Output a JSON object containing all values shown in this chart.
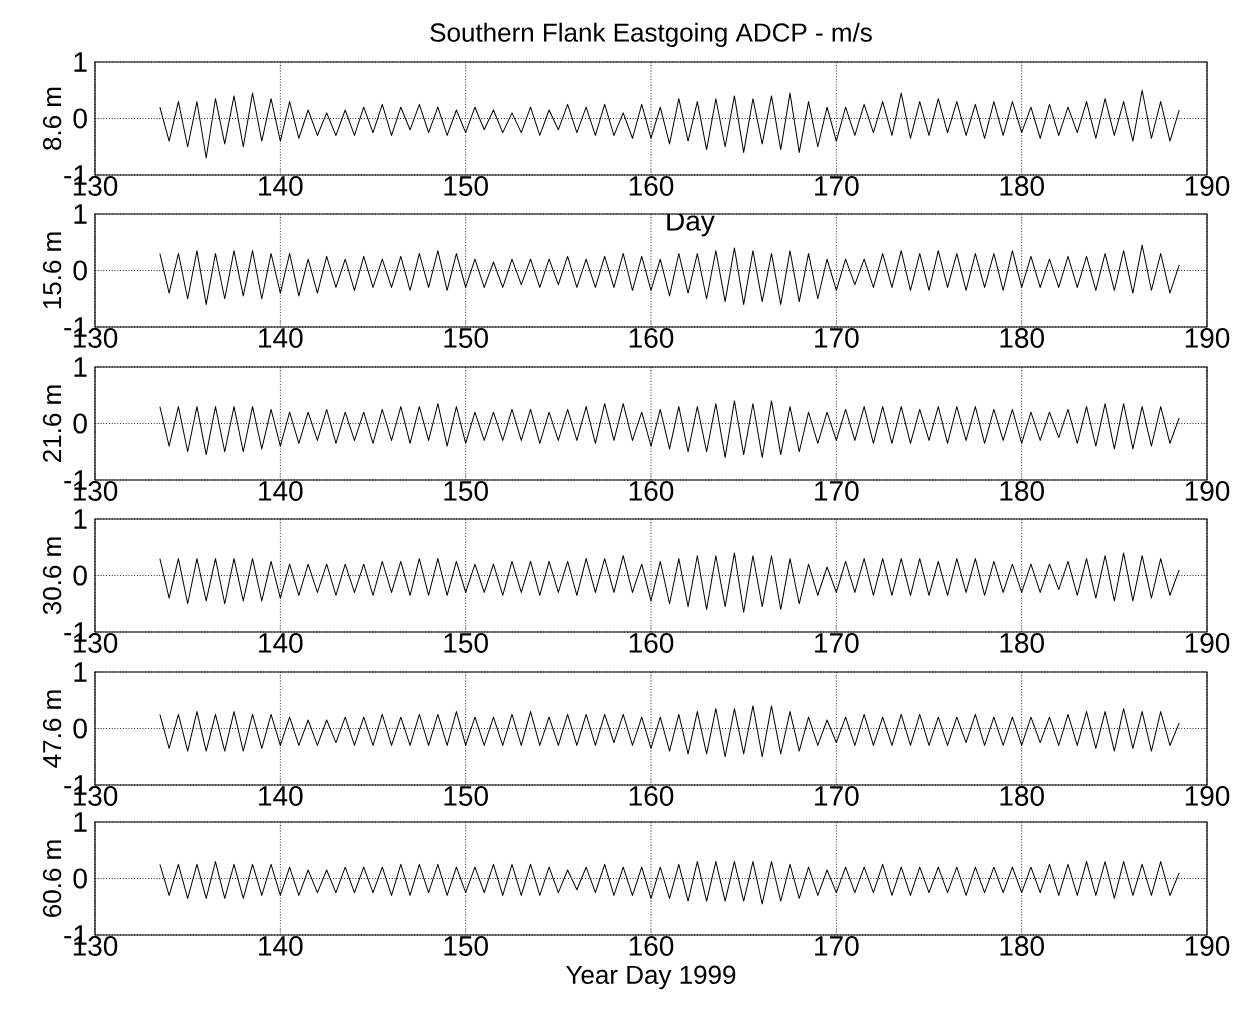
{
  "chart_data": [
    {
      "type": "line",
      "title": "Southern Flank Eastgoing ADCP - m/s",
      "ylabel": "8.6 m",
      "xlim": [
        130,
        190
      ],
      "ylim": [
        -1,
        1
      ],
      "xticks": [
        130,
        140,
        150,
        160,
        170,
        180,
        190
      ],
      "yticks": [
        -1,
        0,
        1
      ],
      "grid": true,
      "x": [
        133.5,
        134,
        134.5,
        135,
        135.5,
        136,
        136.5,
        137,
        137.5,
        138,
        138.5,
        139,
        139.5,
        140,
        140.5,
        141,
        141.5,
        142,
        142.5,
        143,
        143.5,
        144,
        144.5,
        145,
        145.5,
        146,
        146.5,
        147,
        147.5,
        148,
        148.5,
        149,
        149.5,
        150,
        150.5,
        151,
        151.5,
        152,
        152.5,
        153,
        153.5,
        154,
        154.5,
        155,
        155.5,
        156,
        156.5,
        157,
        157.5,
        158,
        158.5,
        159,
        159.5,
        160,
        160.5,
        161,
        161.5,
        162,
        162.5,
        163,
        163.5,
        164,
        164.5,
        165,
        165.5,
        166,
        166.5,
        167,
        167.5,
        168,
        168.5,
        169,
        169.5,
        170,
        170.5,
        171,
        171.5,
        172,
        172.5,
        173,
        173.5,
        174,
        174.5,
        175,
        175.5,
        176,
        176.5,
        177,
        177.5,
        178,
        178.5,
        179,
        179.5,
        180,
        180.5,
        181,
        181.5,
        182,
        182.5,
        183,
        183.5,
        184,
        184.5,
        185,
        185.5,
        186,
        186.5,
        187,
        187.5,
        188,
        188.5
      ],
      "series": [
        {
          "color": "#000000",
          "values": [
            0.2,
            -0.4,
            0.3,
            -0.5,
            0.3,
            -0.7,
            0.35,
            -0.45,
            0.4,
            -0.5,
            0.45,
            -0.4,
            0.35,
            -0.4,
            0.3,
            -0.35,
            0.15,
            -0.3,
            0.1,
            -0.3,
            0.15,
            -0.3,
            0.2,
            -0.25,
            0.25,
            -0.3,
            0.2,
            -0.2,
            0.25,
            -0.25,
            0.2,
            -0.3,
            0.15,
            -0.25,
            0.2,
            -0.2,
            0.15,
            -0.25,
            0.1,
            -0.25,
            0.2,
            -0.3,
            0.15,
            -0.2,
            0.25,
            -0.25,
            0.2,
            -0.3,
            0.25,
            -0.3,
            0.1,
            -0.35,
            0.25,
            -0.35,
            0.2,
            -0.45,
            0.35,
            -0.4,
            0.3,
            -0.55,
            0.35,
            -0.5,
            0.4,
            -0.6,
            0.35,
            -0.45,
            0.4,
            -0.55,
            0.45,
            -0.6,
            0.3,
            -0.5,
            0.2,
            -0.4,
            0.2,
            -0.3,
            0.25,
            -0.25,
            0.3,
            -0.3,
            0.45,
            -0.35,
            0.3,
            -0.3,
            0.35,
            -0.25,
            0.3,
            -0.3,
            0.25,
            -0.35,
            0.3,
            -0.3,
            0.3,
            -0.25,
            0.2,
            -0.35,
            0.25,
            -0.3,
            0.2,
            -0.25,
            0.3,
            -0.35,
            0.35,
            -0.3,
            0.3,
            -0.4,
            0.5,
            -0.35,
            0.3,
            -0.4,
            0.15
          ]
        }
      ]
    },
    {
      "type": "line",
      "ylabel": "15.6 m",
      "annotations": [
        "Day"
      ],
      "xlim": [
        130,
        190
      ],
      "ylim": [
        -1,
        1
      ],
      "xticks": [
        130,
        140,
        150,
        160,
        170,
        180,
        190
      ],
      "yticks": [
        -1,
        0,
        1
      ],
      "grid": true,
      "x": [
        133.5,
        134,
        134.5,
        135,
        135.5,
        136,
        136.5,
        137,
        137.5,
        138,
        138.5,
        139,
        139.5,
        140,
        140.5,
        141,
        141.5,
        142,
        142.5,
        143,
        143.5,
        144,
        144.5,
        145,
        145.5,
        146,
        146.5,
        147,
        147.5,
        148,
        148.5,
        149,
        149.5,
        150,
        150.5,
        151,
        151.5,
        152,
        152.5,
        153,
        153.5,
        154,
        154.5,
        155,
        155.5,
        156,
        156.5,
        157,
        157.5,
        158,
        158.5,
        159,
        159.5,
        160,
        160.5,
        161,
        161.5,
        162,
        162.5,
        163,
        163.5,
        164,
        164.5,
        165,
        165.5,
        166,
        166.5,
        167,
        167.5,
        168,
        168.5,
        169,
        169.5,
        170,
        170.5,
        171,
        171.5,
        172,
        172.5,
        173,
        173.5,
        174,
        174.5,
        175,
        175.5,
        176,
        176.5,
        177,
        177.5,
        178,
        178.5,
        179,
        179.5,
        180,
        180.5,
        181,
        181.5,
        182,
        182.5,
        183,
        183.5,
        184,
        184.5,
        185,
        185.5,
        186,
        186.5,
        187,
        187.5,
        188,
        188.5
      ],
      "series": [
        {
          "color": "#000000",
          "values": [
            0.3,
            -0.4,
            0.3,
            -0.5,
            0.35,
            -0.6,
            0.3,
            -0.5,
            0.35,
            -0.45,
            0.35,
            -0.5,
            0.3,
            -0.4,
            0.3,
            -0.45,
            0.2,
            -0.4,
            0.25,
            -0.3,
            0.2,
            -0.35,
            0.25,
            -0.3,
            0.2,
            -0.3,
            0.25,
            -0.35,
            0.3,
            -0.3,
            0.35,
            -0.35,
            0.3,
            -0.3,
            0.2,
            -0.3,
            0.15,
            -0.3,
            0.2,
            -0.25,
            0.2,
            -0.3,
            0.2,
            -0.25,
            0.25,
            -0.3,
            0.2,
            -0.3,
            0.25,
            -0.3,
            0.3,
            -0.35,
            0.25,
            -0.35,
            0.2,
            -0.45,
            0.3,
            -0.4,
            0.3,
            -0.5,
            0.35,
            -0.55,
            0.4,
            -0.6,
            0.35,
            -0.55,
            0.3,
            -0.6,
            0.35,
            -0.55,
            0.3,
            -0.5,
            0.2,
            -0.35,
            0.2,
            -0.25,
            0.2,
            -0.3,
            0.3,
            -0.3,
            0.35,
            -0.35,
            0.3,
            -0.35,
            0.35,
            -0.3,
            0.3,
            -0.35,
            0.3,
            -0.3,
            0.3,
            -0.35,
            0.35,
            -0.3,
            0.25,
            -0.3,
            0.2,
            -0.3,
            0.25,
            -0.3,
            0.25,
            -0.35,
            0.3,
            -0.35,
            0.35,
            -0.4,
            0.45,
            -0.35,
            0.3,
            -0.4,
            0.1
          ]
        }
      ]
    },
    {
      "type": "line",
      "ylabel": "21.6 m",
      "xlim": [
        130,
        190
      ],
      "ylim": [
        -1,
        1
      ],
      "xticks": [
        130,
        140,
        150,
        160,
        170,
        180,
        190
      ],
      "yticks": [
        -1,
        0,
        1
      ],
      "grid": true,
      "x": [
        133.5,
        134,
        134.5,
        135,
        135.5,
        136,
        136.5,
        137,
        137.5,
        138,
        138.5,
        139,
        139.5,
        140,
        140.5,
        141,
        141.5,
        142,
        142.5,
        143,
        143.5,
        144,
        144.5,
        145,
        145.5,
        146,
        146.5,
        147,
        147.5,
        148,
        148.5,
        149,
        149.5,
        150,
        150.5,
        151,
        151.5,
        152,
        152.5,
        153,
        153.5,
        154,
        154.5,
        155,
        155.5,
        156,
        156.5,
        157,
        157.5,
        158,
        158.5,
        159,
        159.5,
        160,
        160.5,
        161,
        161.5,
        162,
        162.5,
        163,
        163.5,
        164,
        164.5,
        165,
        165.5,
        166,
        166.5,
        167,
        167.5,
        168,
        168.5,
        169,
        169.5,
        170,
        170.5,
        171,
        171.5,
        172,
        172.5,
        173,
        173.5,
        174,
        174.5,
        175,
        175.5,
        176,
        176.5,
        177,
        177.5,
        178,
        178.5,
        179,
        179.5,
        180,
        180.5,
        181,
        181.5,
        182,
        182.5,
        183,
        183.5,
        184,
        184.5,
        185,
        185.5,
        186,
        186.5,
        187,
        187.5,
        188,
        188.5
      ],
      "series": [
        {
          "color": "#000000",
          "values": [
            0.3,
            -0.4,
            0.3,
            -0.5,
            0.3,
            -0.55,
            0.3,
            -0.5,
            0.3,
            -0.5,
            0.3,
            -0.45,
            0.25,
            -0.4,
            0.2,
            -0.35,
            0.2,
            -0.3,
            0.25,
            -0.35,
            0.2,
            -0.3,
            0.2,
            -0.35,
            0.25,
            -0.3,
            0.3,
            -0.35,
            0.3,
            -0.3,
            0.35,
            -0.4,
            0.3,
            -0.35,
            0.2,
            -0.3,
            0.2,
            -0.3,
            0.25,
            -0.3,
            0.25,
            -0.35,
            0.2,
            -0.3,
            0.25,
            -0.3,
            0.3,
            -0.35,
            0.35,
            -0.3,
            0.35,
            -0.3,
            0.2,
            -0.4,
            0.25,
            -0.45,
            0.3,
            -0.5,
            0.3,
            -0.5,
            0.35,
            -0.6,
            0.4,
            -0.55,
            0.35,
            -0.6,
            0.4,
            -0.55,
            0.3,
            -0.5,
            0.2,
            -0.35,
            0.2,
            -0.3,
            0.25,
            -0.3,
            0.3,
            -0.35,
            0.3,
            -0.35,
            0.3,
            -0.35,
            0.25,
            -0.3,
            0.3,
            -0.35,
            0.3,
            -0.3,
            0.3,
            -0.35,
            0.25,
            -0.3,
            0.25,
            -0.35,
            0.2,
            -0.3,
            0.2,
            -0.25,
            0.25,
            -0.35,
            0.3,
            -0.4,
            0.35,
            -0.45,
            0.35,
            -0.45,
            0.3,
            -0.4,
            0.3,
            -0.35,
            0.1
          ]
        }
      ]
    },
    {
      "type": "line",
      "ylabel": "30.6 m",
      "xlim": [
        130,
        190
      ],
      "ylim": [
        -1,
        1
      ],
      "xticks": [
        130,
        140,
        150,
        160,
        170,
        180,
        190
      ],
      "yticks": [
        -1,
        0,
        1
      ],
      "grid": true,
      "x": [
        133.5,
        134,
        134.5,
        135,
        135.5,
        136,
        136.5,
        137,
        137.5,
        138,
        138.5,
        139,
        139.5,
        140,
        140.5,
        141,
        141.5,
        142,
        142.5,
        143,
        143.5,
        144,
        144.5,
        145,
        145.5,
        146,
        146.5,
        147,
        147.5,
        148,
        148.5,
        149,
        149.5,
        150,
        150.5,
        151,
        151.5,
        152,
        152.5,
        153,
        153.5,
        154,
        154.5,
        155,
        155.5,
        156,
        156.5,
        157,
        157.5,
        158,
        158.5,
        159,
        159.5,
        160,
        160.5,
        161,
        161.5,
        162,
        162.5,
        163,
        163.5,
        164,
        164.5,
        165,
        165.5,
        166,
        166.5,
        167,
        167.5,
        168,
        168.5,
        169,
        169.5,
        170,
        170.5,
        171,
        171.5,
        172,
        172.5,
        173,
        173.5,
        174,
        174.5,
        175,
        175.5,
        176,
        176.5,
        177,
        177.5,
        178,
        178.5,
        179,
        179.5,
        180,
        180.5,
        181,
        181.5,
        182,
        182.5,
        183,
        183.5,
        184,
        184.5,
        185,
        185.5,
        186,
        186.5,
        187,
        187.5,
        188,
        188.5
      ],
      "series": [
        {
          "color": "#000000",
          "values": [
            0.3,
            -0.4,
            0.3,
            -0.5,
            0.3,
            -0.45,
            0.3,
            -0.5,
            0.3,
            -0.45,
            0.3,
            -0.45,
            0.25,
            -0.4,
            0.2,
            -0.35,
            0.2,
            -0.3,
            0.2,
            -0.35,
            0.2,
            -0.3,
            0.2,
            -0.35,
            0.25,
            -0.3,
            0.25,
            -0.35,
            0.3,
            -0.35,
            0.3,
            -0.35,
            0.25,
            -0.3,
            0.2,
            -0.3,
            0.2,
            -0.35,
            0.25,
            -0.3,
            0.25,
            -0.35,
            0.25,
            -0.3,
            0.25,
            -0.35,
            0.3,
            -0.3,
            0.3,
            -0.3,
            0.35,
            -0.3,
            0.2,
            -0.45,
            0.25,
            -0.5,
            0.3,
            -0.55,
            0.35,
            -0.6,
            0.35,
            -0.55,
            0.4,
            -0.65,
            0.35,
            -0.55,
            0.35,
            -0.6,
            0.3,
            -0.5,
            0.2,
            -0.35,
            0.15,
            -0.3,
            0.25,
            -0.3,
            0.3,
            -0.35,
            0.3,
            -0.35,
            0.3,
            -0.35,
            0.3,
            -0.35,
            0.25,
            -0.35,
            0.3,
            -0.3,
            0.3,
            -0.35,
            0.25,
            -0.3,
            0.2,
            -0.3,
            0.2,
            -0.3,
            0.2,
            -0.25,
            0.25,
            -0.35,
            0.3,
            -0.4,
            0.35,
            -0.45,
            0.4,
            -0.45,
            0.35,
            -0.4,
            0.3,
            -0.35,
            0.1
          ]
        }
      ]
    },
    {
      "type": "line",
      "ylabel": "47.6 m",
      "xlim": [
        130,
        190
      ],
      "ylim": [
        -1,
        1
      ],
      "xticks": [
        130,
        140,
        150,
        160,
        170,
        180,
        190
      ],
      "yticks": [
        -1,
        0,
        1
      ],
      "grid": true,
      "x": [
        133.5,
        134,
        134.5,
        135,
        135.5,
        136,
        136.5,
        137,
        137.5,
        138,
        138.5,
        139,
        139.5,
        140,
        140.5,
        141,
        141.5,
        142,
        142.5,
        143,
        143.5,
        144,
        144.5,
        145,
        145.5,
        146,
        146.5,
        147,
        147.5,
        148,
        148.5,
        149,
        149.5,
        150,
        150.5,
        151,
        151.5,
        152,
        152.5,
        153,
        153.5,
        154,
        154.5,
        155,
        155.5,
        156,
        156.5,
        157,
        157.5,
        158,
        158.5,
        159,
        159.5,
        160,
        160.5,
        161,
        161.5,
        162,
        162.5,
        163,
        163.5,
        164,
        164.5,
        165,
        165.5,
        166,
        166.5,
        167,
        167.5,
        168,
        168.5,
        169,
        169.5,
        170,
        170.5,
        171,
        171.5,
        172,
        172.5,
        173,
        173.5,
        174,
        174.5,
        175,
        175.5,
        176,
        176.5,
        177,
        177.5,
        178,
        178.5,
        179,
        179.5,
        180,
        180.5,
        181,
        181.5,
        182,
        182.5,
        183,
        183.5,
        184,
        184.5,
        185,
        185.5,
        186,
        186.5,
        187,
        187.5,
        188,
        188.5
      ],
      "series": [
        {
          "color": "#000000",
          "values": [
            0.25,
            -0.35,
            0.25,
            -0.4,
            0.3,
            -0.4,
            0.25,
            -0.4,
            0.3,
            -0.4,
            0.25,
            -0.35,
            0.25,
            -0.3,
            0.2,
            -0.3,
            0.15,
            -0.3,
            0.15,
            -0.25,
            0.2,
            -0.3,
            0.2,
            -0.3,
            0.25,
            -0.3,
            0.2,
            -0.3,
            0.25,
            -0.3,
            0.25,
            -0.3,
            0.3,
            -0.3,
            0.2,
            -0.3,
            0.2,
            -0.3,
            0.25,
            -0.3,
            0.3,
            -0.3,
            0.2,
            -0.3,
            0.25,
            -0.3,
            0.25,
            -0.3,
            0.25,
            -0.25,
            0.25,
            -0.3,
            0.2,
            -0.35,
            0.2,
            -0.4,
            0.25,
            -0.45,
            0.3,
            -0.45,
            0.35,
            -0.5,
            0.35,
            -0.45,
            0.4,
            -0.5,
            0.4,
            -0.45,
            0.3,
            -0.4,
            0.2,
            -0.3,
            0.15,
            -0.25,
            0.2,
            -0.3,
            0.25,
            -0.3,
            0.2,
            -0.3,
            0.25,
            -0.3,
            0.25,
            -0.3,
            0.2,
            -0.3,
            0.2,
            -0.25,
            0.25,
            -0.3,
            0.2,
            -0.3,
            0.2,
            -0.3,
            0.2,
            -0.25,
            0.2,
            -0.3,
            0.25,
            -0.3,
            0.3,
            -0.35,
            0.3,
            -0.4,
            0.35,
            -0.35,
            0.3,
            -0.4,
            0.3,
            -0.3,
            0.1
          ]
        }
      ]
    },
    {
      "type": "line",
      "ylabel": "60.6 m",
      "xlabel": "Year Day 1999",
      "xlim": [
        130,
        190
      ],
      "ylim": [
        -1,
        1
      ],
      "xticks": [
        130,
        140,
        150,
        160,
        170,
        180,
        190
      ],
      "yticks": [
        -1,
        0,
        1
      ],
      "grid": true,
      "x": [
        133.5,
        134,
        134.5,
        135,
        135.5,
        136,
        136.5,
        137,
        137.5,
        138,
        138.5,
        139,
        139.5,
        140,
        140.5,
        141,
        141.5,
        142,
        142.5,
        143,
        143.5,
        144,
        144.5,
        145,
        145.5,
        146,
        146.5,
        147,
        147.5,
        148,
        148.5,
        149,
        149.5,
        150,
        150.5,
        151,
        151.5,
        152,
        152.5,
        153,
        153.5,
        154,
        154.5,
        155,
        155.5,
        156,
        156.5,
        157,
        157.5,
        158,
        158.5,
        159,
        159.5,
        160,
        160.5,
        161,
        161.5,
        162,
        162.5,
        163,
        163.5,
        164,
        164.5,
        165,
        165.5,
        166,
        166.5,
        167,
        167.5,
        168,
        168.5,
        169,
        169.5,
        170,
        170.5,
        171,
        171.5,
        172,
        172.5,
        173,
        173.5,
        174,
        174.5,
        175,
        175.5,
        176,
        176.5,
        177,
        177.5,
        178,
        178.5,
        179,
        179.5,
        180,
        180.5,
        181,
        181.5,
        182,
        182.5,
        183,
        183.5,
        184,
        184.5,
        185,
        185.5,
        186,
        186.5,
        187,
        187.5,
        188,
        188.5
      ],
      "series": [
        {
          "color": "#000000",
          "values": [
            0.25,
            -0.3,
            0.25,
            -0.35,
            0.25,
            -0.35,
            0.3,
            -0.35,
            0.25,
            -0.35,
            0.25,
            -0.3,
            0.25,
            -0.3,
            0.2,
            -0.3,
            0.15,
            -0.25,
            0.15,
            -0.25,
            0.2,
            -0.25,
            0.2,
            -0.25,
            0.2,
            -0.3,
            0.25,
            -0.3,
            0.25,
            -0.25,
            0.25,
            -0.3,
            0.2,
            -0.25,
            0.2,
            -0.25,
            0.25,
            -0.3,
            0.25,
            -0.3,
            0.25,
            -0.3,
            0.2,
            -0.25,
            0.15,
            -0.2,
            0.2,
            -0.25,
            0.25,
            -0.3,
            0.2,
            -0.3,
            0.2,
            -0.35,
            0.2,
            -0.35,
            0.25,
            -0.4,
            0.3,
            -0.4,
            0.3,
            -0.4,
            0.3,
            -0.4,
            0.3,
            -0.45,
            0.3,
            -0.4,
            0.25,
            -0.35,
            0.2,
            -0.3,
            0.15,
            -0.25,
            0.2,
            -0.25,
            0.2,
            -0.25,
            0.25,
            -0.3,
            0.2,
            -0.3,
            0.2,
            -0.25,
            0.2,
            -0.25,
            0.2,
            -0.3,
            0.2,
            -0.25,
            0.2,
            -0.25,
            0.2,
            -0.25,
            0.2,
            -0.25,
            0.25,
            -0.3,
            0.25,
            -0.3,
            0.3,
            -0.3,
            0.3,
            -0.35,
            0.3,
            -0.3,
            0.25,
            -0.3,
            0.3,
            -0.3,
            0.1
          ]
        }
      ]
    }
  ]
}
